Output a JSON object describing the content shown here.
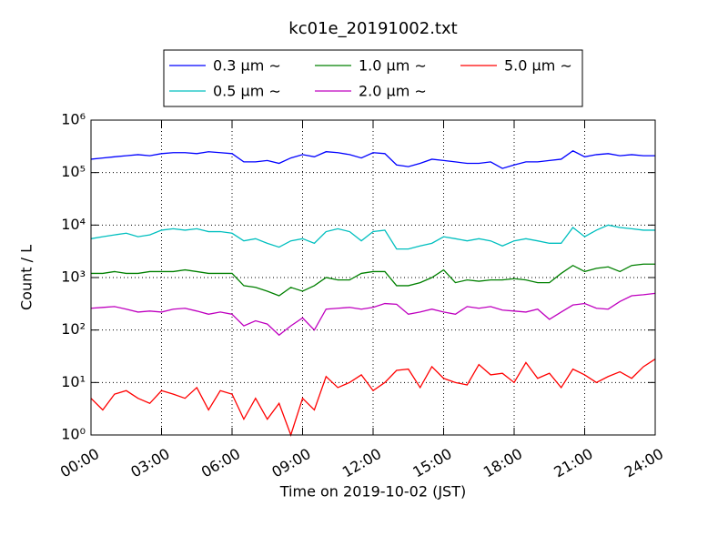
{
  "chart_data": {
    "type": "line",
    "title": "kc01e_20191002.txt",
    "x_label": "Time on 2019-10-02 (JST)",
    "y_label": "Count / L",
    "log_y": true,
    "grid": true,
    "legend": "top",
    "xlim": [
      0,
      24
    ],
    "xticks": [
      {
        "value": 0,
        "label": "00:00"
      },
      {
        "value": 3,
        "label": "03:00"
      },
      {
        "value": 6,
        "label": "06:00"
      },
      {
        "value": 9,
        "label": "09:00"
      },
      {
        "value": 12,
        "label": "12:00"
      },
      {
        "value": 15,
        "label": "15:00"
      },
      {
        "value": 18,
        "label": "18:00"
      },
      {
        "value": 21,
        "label": "21:00"
      },
      {
        "value": 24,
        "label": "24:00"
      }
    ],
    "ylim": [
      1,
      1000000
    ],
    "yticks": [
      {
        "value": 1,
        "label": "10⁰"
      },
      {
        "value": 10,
        "label": "10¹"
      },
      {
        "value": 100,
        "label": "10²"
      },
      {
        "value": 1000,
        "label": "10³"
      },
      {
        "value": 10000,
        "label": "10⁴"
      },
      {
        "value": 100000,
        "label": "10⁵"
      },
      {
        "value": 1000000,
        "label": "10⁶"
      }
    ],
    "x": [
      0,
      0.5,
      1,
      1.5,
      2,
      2.5,
      3,
      3.5,
      4,
      4.5,
      5,
      5.5,
      6,
      6.5,
      7,
      7.5,
      8,
      8.5,
      9,
      9.5,
      10,
      10.5,
      11,
      11.5,
      12,
      12.5,
      13,
      13.5,
      14,
      14.5,
      15,
      15.5,
      16,
      16.5,
      17,
      17.5,
      18,
      18.5,
      19,
      19.5,
      20,
      20.5,
      21,
      21.5,
      22,
      22.5,
      23,
      23.5,
      24
    ],
    "series": [
      {
        "name": "0.3 μm ∼",
        "color": "#0000ff",
        "values": [
          180000,
          190000,
          200000,
          210000,
          220000,
          210000,
          230000,
          240000,
          240000,
          230000,
          250000,
          240000,
          230000,
          160000,
          160000,
          170000,
          150000,
          190000,
          220000,
          200000,
          250000,
          240000,
          220000,
          190000,
          240000,
          230000,
          140000,
          130000,
          150000,
          180000,
          170000,
          160000,
          150000,
          150000,
          160000,
          120000,
          140000,
          160000,
          160000,
          170000,
          180000,
          260000,
          200000,
          220000,
          230000,
          210000,
          220000,
          210000,
          210000
        ]
      },
      {
        "name": "0.5 μm ∼",
        "color": "#00bfbf",
        "values": [
          5500,
          6000,
          6500,
          7000,
          6000,
          6500,
          8000,
          8500,
          8000,
          8500,
          7500,
          7500,
          7000,
          5000,
          5500,
          4500,
          3800,
          5000,
          5500,
          4500,
          7500,
          8500,
          7500,
          5000,
          7500,
          8000,
          3500,
          3500,
          4000,
          4500,
          6000,
          5500,
          5000,
          5500,
          5000,
          4000,
          5000,
          5500,
          5000,
          4500,
          4500,
          9000,
          6000,
          8000,
          10000,
          9000,
          8500,
          8000,
          8000
        ]
      },
      {
        "name": "1.0 μm ∼",
        "color": "#008000",
        "values": [
          1200,
          1200,
          1300,
          1200,
          1200,
          1300,
          1300,
          1300,
          1400,
          1300,
          1200,
          1200,
          1200,
          700,
          650,
          550,
          450,
          650,
          550,
          700,
          1000,
          900,
          900,
          1200,
          1300,
          1300,
          700,
          700,
          800,
          1000,
          1400,
          800,
          900,
          850,
          900,
          900,
          950,
          900,
          800,
          800,
          1200,
          1700,
          1300,
          1500,
          1600,
          1300,
          1700,
          1800,
          1800
        ]
      },
      {
        "name": "2.0 μm ∼",
        "color": "#bf00bf",
        "values": [
          260,
          270,
          280,
          250,
          220,
          230,
          220,
          250,
          260,
          230,
          200,
          220,
          200,
          120,
          150,
          130,
          80,
          120,
          170,
          100,
          250,
          260,
          270,
          250,
          270,
          320,
          310,
          200,
          220,
          250,
          220,
          200,
          280,
          260,
          280,
          240,
          230,
          220,
          250,
          160,
          220,
          300,
          320,
          260,
          250,
          350,
          450,
          470,
          500
        ]
      },
      {
        "name": "5.0 μm ∼",
        "color": "#ff0000",
        "values": [
          5,
          3,
          6,
          7,
          5,
          4,
          7,
          6,
          5,
          8,
          3,
          7,
          6,
          2,
          5,
          2,
          4,
          1,
          5,
          3,
          13,
          8,
          10,
          14,
          7,
          10,
          17,
          18,
          8,
          20,
          12,
          10,
          9,
          22,
          14,
          15,
          10,
          24,
          12,
          15,
          8,
          18,
          14,
          10,
          13,
          16,
          12,
          20,
          28
        ]
      }
    ]
  }
}
